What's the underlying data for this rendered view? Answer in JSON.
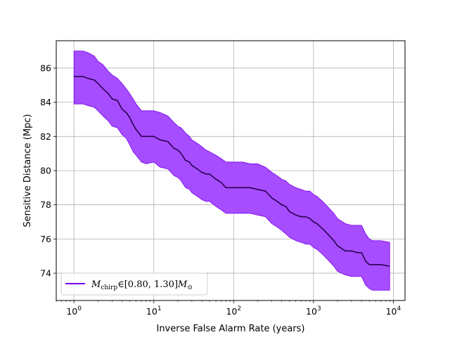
{
  "chart_data": {
    "type": "line",
    "title": "",
    "xlabel": "Inverse False Alarm Rate (years)",
    "ylabel": "Sensitive Distance (Mpc)",
    "x_scale": "log",
    "xlim": [
      0.6,
      14000
    ],
    "ylim": [
      72.4,
      87.6
    ],
    "grid": true,
    "legend_position": "lower-left",
    "x_ticks": [
      {
        "value": 1,
        "label": "10",
        "exp": "0"
      },
      {
        "value": 10,
        "label": "10",
        "exp": "1"
      },
      {
        "value": 100,
        "label": "10",
        "exp": "2"
      },
      {
        "value": 1000,
        "label": "10",
        "exp": "3"
      },
      {
        "value": 10000,
        "label": "10",
        "exp": "4"
      }
    ],
    "y_ticks": [
      {
        "value": 74,
        "label": "74"
      },
      {
        "value": 76,
        "label": "76"
      },
      {
        "value": 78,
        "label": "78"
      },
      {
        "value": 80,
        "label": "80"
      },
      {
        "value": 82,
        "label": "82"
      },
      {
        "value": 84,
        "label": "84"
      },
      {
        "value": 86,
        "label": "86"
      }
    ],
    "series": [
      {
        "name": "M_chirp ∈ [0.80, 1.30] M_⊙",
        "legend": {
          "m": "M",
          "sub": "chirp",
          "range": "∈[0.80, 1.30]",
          "m2": "M",
          "sun": "⊙"
        },
        "color": "#7700ee",
        "line_color": "#2a0050",
        "band_color": "#a64dff",
        "x": [
          1.0,
          1.3,
          1.5,
          1.8,
          2.0,
          2.3,
          2.7,
          3.0,
          3.5,
          4.0,
          4.5,
          5.0,
          5.5,
          6.0,
          7.0,
          8.0,
          10,
          12,
          15,
          18,
          20,
          22,
          25,
          28,
          30,
          35,
          40,
          45,
          50,
          60,
          70,
          80,
          100,
          130,
          160,
          200,
          250,
          300,
          350,
          400,
          450,
          500,
          600,
          700,
          800,
          900,
          1000,
          1100,
          1300,
          1500,
          1800,
          2000,
          2500,
          3000,
          3500,
          4000,
          4500,
          5000,
          5500,
          6000,
          7000,
          9000
        ],
        "y": [
          85.5,
          85.5,
          85.4,
          85.3,
          85.1,
          84.8,
          84.5,
          84.2,
          84.1,
          83.6,
          83.4,
          83.1,
          82.7,
          82.4,
          82.0,
          82.0,
          82.0,
          81.8,
          81.7,
          81.3,
          81.2,
          81.0,
          80.6,
          80.5,
          80.3,
          80.1,
          79.9,
          79.8,
          79.8,
          79.5,
          79.3,
          79.0,
          79.0,
          79.0,
          79.0,
          78.9,
          78.8,
          78.4,
          78.2,
          78.0,
          77.9,
          77.6,
          77.4,
          77.3,
          77.3,
          77.2,
          77.0,
          76.9,
          76.6,
          76.3,
          75.9,
          75.6,
          75.3,
          75.3,
          75.2,
          75.2,
          74.7,
          74.5,
          74.5,
          74.5,
          74.5,
          74.4
        ],
        "upper": [
          87.0,
          87.0,
          86.9,
          86.7,
          86.4,
          86.2,
          85.8,
          85.6,
          85.4,
          85.1,
          84.8,
          84.5,
          84.2,
          83.9,
          83.5,
          83.5,
          83.5,
          83.4,
          83.2,
          82.8,
          82.6,
          82.5,
          82.2,
          82.0,
          81.8,
          81.6,
          81.4,
          81.2,
          81.1,
          80.9,
          80.7,
          80.5,
          80.5,
          80.5,
          80.4,
          80.4,
          80.2,
          79.9,
          79.7,
          79.5,
          79.4,
          79.2,
          79.0,
          78.9,
          78.8,
          78.8,
          78.6,
          78.5,
          78.2,
          77.9,
          77.5,
          77.2,
          76.9,
          76.8,
          76.8,
          76.8,
          76.3,
          76.0,
          75.9,
          75.9,
          75.9,
          75.8
        ],
        "lower": [
          83.9,
          83.9,
          83.8,
          83.7,
          83.5,
          83.2,
          82.9,
          82.6,
          82.5,
          82.1,
          81.9,
          81.5,
          81.1,
          80.9,
          80.5,
          80.4,
          80.5,
          80.2,
          80.1,
          79.7,
          79.6,
          79.4,
          79.0,
          78.9,
          78.7,
          78.5,
          78.3,
          78.2,
          78.2,
          77.9,
          77.7,
          77.5,
          77.5,
          77.5,
          77.5,
          77.4,
          77.3,
          76.9,
          76.7,
          76.5,
          76.3,
          76.1,
          75.9,
          75.8,
          75.7,
          75.7,
          75.5,
          75.4,
          75.1,
          74.8,
          74.4,
          74.1,
          73.9,
          73.8,
          73.8,
          73.8,
          73.3,
          73.1,
          73.0,
          73.0,
          73.0,
          73.0
        ]
      }
    ]
  }
}
